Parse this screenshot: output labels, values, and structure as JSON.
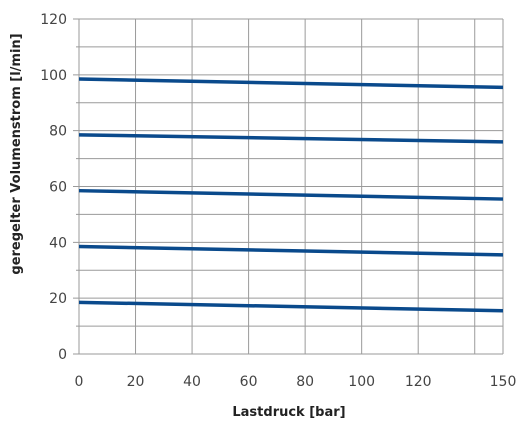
{
  "chart_data": {
    "type": "line",
    "title": "",
    "xlabel": "Lastdruck [bar]",
    "ylabel": "geregelter Volumenstrom [l/min]",
    "xlim": [
      0,
      150
    ],
    "ylim": [
      0,
      120
    ],
    "x_ticks": [
      0,
      20,
      40,
      60,
      80,
      100,
      120,
      150
    ],
    "y_ticks": [
      0,
      20,
      40,
      60,
      80,
      100,
      120
    ],
    "x_grid": [
      0,
      20,
      40,
      60,
      80,
      100,
      120,
      140,
      150
    ],
    "y_grid": [
      0,
      10,
      20,
      30,
      40,
      50,
      60,
      70,
      80,
      90,
      100,
      110,
      120
    ],
    "grid": true,
    "line_color": "#0a4a8c",
    "grid_color": "#9a9a9a",
    "series": [
      {
        "x": [
          0,
          150
        ],
        "y": [
          18.5,
          15.5
        ]
      },
      {
        "x": [
          0,
          150
        ],
        "y": [
          38.5,
          35.5
        ]
      },
      {
        "x": [
          0,
          150
        ],
        "y": [
          58.5,
          55.5
        ]
      },
      {
        "x": [
          0,
          150
        ],
        "y": [
          78.5,
          76.0
        ]
      },
      {
        "x": [
          0,
          150
        ],
        "y": [
          98.5,
          95.5
        ]
      }
    ]
  }
}
